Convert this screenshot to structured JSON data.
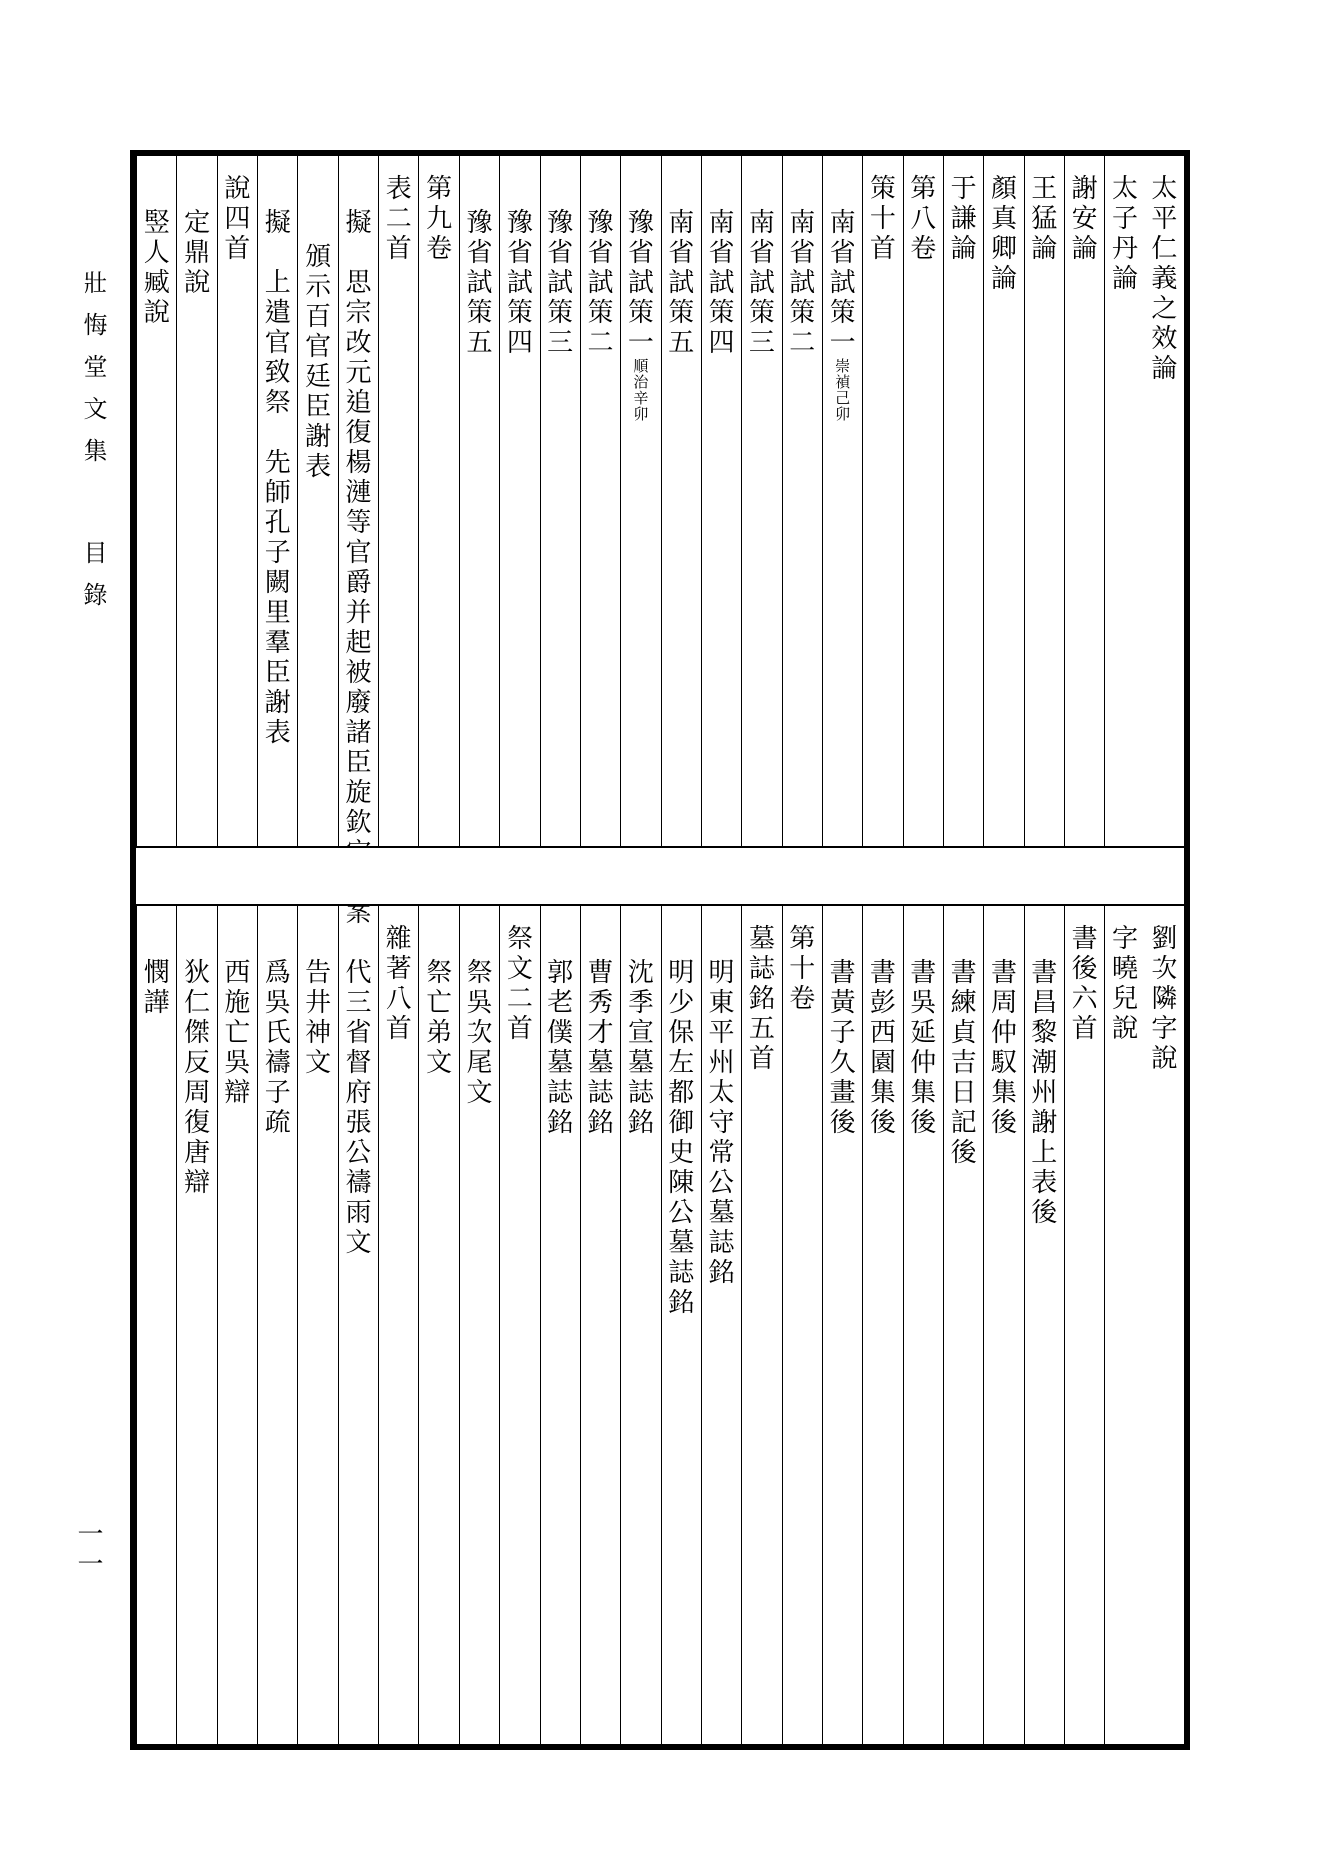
{
  "margin": {
    "title": "壯悔堂文集",
    "subtitle": "目錄",
    "page_number": "一一"
  },
  "columns": [
    {
      "upper": "太平仁義之效論",
      "lower": "劉次隣字說"
    },
    {
      "upper": "太子丹論",
      "lower": "字曉兒說"
    },
    {
      "upper": "謝安論",
      "lower": "書後六首"
    },
    {
      "upper": "王猛論",
      "lower": "書昌黎潮州謝上表後",
      "lower_indent": 1
    },
    {
      "upper": "顏真卿論",
      "lower": "書周仲馭集後",
      "lower_indent": 1
    },
    {
      "upper": "于謙論",
      "lower": "書練貞吉日記後",
      "lower_indent": 1
    },
    {
      "upper": "第八卷",
      "lower": "書吳延仲集後",
      "lower_indent": 1
    },
    {
      "upper": "策十首",
      "lower": "書彭西園集後",
      "lower_indent": 1
    },
    {
      "upper": "南省試策一",
      "upper_indent": 1,
      "upper_small": "崇禎己卯",
      "lower": "書黃子久畫後",
      "lower_indent": 1
    },
    {
      "upper": "南省試策二",
      "upper_indent": 1,
      "lower": "第十卷"
    },
    {
      "upper": "南省試策三",
      "upper_indent": 1,
      "lower": "墓誌銘五首"
    },
    {
      "upper": "南省試策四",
      "upper_indent": 1,
      "lower": "明東平州太守常公墓誌銘",
      "lower_indent": 1
    },
    {
      "upper": "南省試策五",
      "upper_indent": 1,
      "lower": "明少保左都御史陳公墓誌銘",
      "lower_indent": 1
    },
    {
      "upper": "豫省試策一",
      "upper_indent": 1,
      "upper_small": "順治辛卯",
      "lower": "沈季宣墓誌銘",
      "lower_indent": 1
    },
    {
      "upper": "豫省試策二",
      "upper_indent": 1,
      "lower": "曹秀才墓誌銘",
      "lower_indent": 1
    },
    {
      "upper": "豫省試策三",
      "upper_indent": 1,
      "lower": "郭老僕墓誌銘",
      "lower_indent": 1
    },
    {
      "upper": "豫省試策四",
      "upper_indent": 1,
      "lower": "祭文二首"
    },
    {
      "upper": "豫省試策五",
      "upper_indent": 1,
      "lower": "祭吳次尾文",
      "lower_indent": 1
    },
    {
      "upper": "第九卷",
      "lower": "祭亡弟文",
      "lower_indent": 1
    },
    {
      "upper": "表二首",
      "lower": "雜著八首"
    },
    {
      "upper": "擬　思宗改元追復楊漣等官爵并起被廢諸臣旋欽定逆案",
      "upper_indent": 1,
      "lower": "代三省督府張公禱雨文",
      "lower_indent": 1
    },
    {
      "upper": "頒示百官廷臣謝表",
      "upper_indent": 2,
      "lower": "告井神文",
      "lower_indent": 1
    },
    {
      "upper": "擬　上遣官致祭　先師孔子闕里羣臣謝表",
      "upper_indent": 1,
      "lower": "爲吳氏禱子疏",
      "lower_indent": 1
    },
    {
      "upper": "說四首",
      "lower": "西施亡吳辯",
      "lower_indent": 1
    },
    {
      "upper": "定鼎說",
      "upper_indent": 1,
      "lower": "狄仁傑反周復唐辯",
      "lower_indent": 1
    },
    {
      "upper": "竪人臧說",
      "upper_indent": 1,
      "lower": "憫譁",
      "lower_indent": 1
    }
  ]
}
